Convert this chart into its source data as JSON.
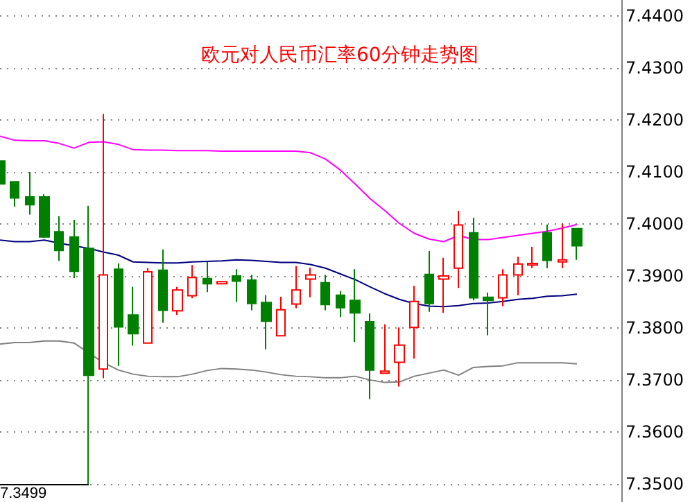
{
  "chart_data": {
    "type": "candlestick",
    "title": "欧元对人民币汇率60分钟走势图",
    "categories": [
      null,
      null,
      null,
      null,
      null,
      null,
      null,
      null,
      null,
      null,
      null,
      null,
      null,
      null,
      null,
      null,
      null,
      null,
      null,
      null,
      null,
      null,
      null,
      null,
      null,
      null,
      null,
      null,
      null,
      null,
      null,
      null,
      null,
      null,
      null,
      null,
      null,
      null,
      null,
      null
    ],
    "ohlc": [
      [
        7.4121,
        7.4121,
        7.4077,
        7.4077
      ],
      [
        7.4081,
        7.4081,
        7.4033,
        7.405
      ],
      [
        7.4052,
        7.41,
        7.4018,
        7.4037
      ],
      [
        7.4052,
        7.4057,
        7.3973,
        7.3975
      ],
      [
        7.3985,
        7.4015,
        7.3929,
        7.3949
      ],
      [
        7.3975,
        7.4008,
        7.3896,
        7.3909
      ],
      [
        7.3953,
        7.4035,
        7.3499,
        7.3709
      ],
      [
        7.3721,
        7.4212,
        7.3703,
        7.3902
      ],
      [
        7.3913,
        7.3924,
        7.3727,
        7.3802
      ],
      [
        7.3825,
        7.3879,
        7.3766,
        7.3789
      ],
      [
        7.3771,
        7.3915,
        7.3771,
        7.3908
      ],
      [
        7.3911,
        7.3951,
        7.381,
        7.3834
      ],
      [
        7.3833,
        7.3879,
        7.3825,
        7.3873
      ],
      [
        7.3862,
        7.3921,
        7.3857,
        7.3897
      ],
      [
        7.3895,
        7.3927,
        7.3869,
        7.3885
      ],
      [
        7.3885,
        7.3889,
        7.3885,
        7.3889
      ],
      [
        7.39,
        7.3913,
        7.385,
        7.389
      ],
      [
        7.3892,
        7.3902,
        7.3834,
        7.3847
      ],
      [
        7.3849,
        7.3863,
        7.3759,
        7.3813
      ],
      [
        7.3785,
        7.386,
        7.3785,
        7.3835
      ],
      [
        7.3846,
        7.3919,
        7.3838,
        7.3873
      ],
      [
        7.3894,
        7.3916,
        7.3859,
        7.3902
      ],
      [
        7.3887,
        7.3902,
        7.3834,
        7.3845
      ],
      [
        7.3863,
        7.3871,
        7.3821,
        7.3839
      ],
      [
        7.3853,
        7.3913,
        7.3773,
        7.3829
      ],
      [
        7.3812,
        7.3828,
        7.3663,
        7.3719
      ],
      [
        7.3713,
        7.3807,
        7.3713,
        7.3717
      ],
      [
        7.3734,
        7.3801,
        7.3687,
        7.3767
      ],
      [
        7.3801,
        7.3881,
        7.3741,
        7.3851
      ],
      [
        7.3903,
        7.3948,
        7.3831,
        7.3847
      ],
      [
        7.3894,
        7.3935,
        7.3829,
        7.39
      ],
      [
        7.3915,
        7.4025,
        7.3877,
        7.3998
      ],
      [
        7.3983,
        7.4012,
        7.3853,
        7.3858
      ],
      [
        7.3859,
        7.3868,
        7.3786,
        7.3853
      ],
      [
        7.3858,
        7.3913,
        7.3842,
        7.3902
      ],
      [
        7.3902,
        7.3937,
        7.3863,
        7.3923
      ],
      [
        7.3921,
        7.3956,
        7.3915,
        7.3924
      ],
      [
        7.3983,
        7.3999,
        7.3915,
        7.393
      ],
      [
        7.3927,
        7.4001,
        7.3915,
        7.3931
      ],
      [
        7.3991,
        7.3991,
        7.3931,
        7.3958
      ]
    ],
    "colors": [
      "#008000",
      "#008000",
      "#008000",
      "#008000",
      "#008000",
      "#008000",
      "#008000",
      "#ff0000",
      "#008000",
      "#008000",
      "#ff0000",
      "#008000",
      "#ff0000",
      "#ff0000",
      "#008000",
      "#ff0000",
      "#008000",
      "#008000",
      "#008000",
      "#ff0000",
      "#ff0000",
      "#ff0000",
      "#008000",
      "#008000",
      "#008000",
      "#008000",
      "#ff0000",
      "#ff0000",
      "#ff0000",
      "#008000",
      "#ff0000",
      "#ff0000",
      "#008000",
      "#008000",
      "#ff0000",
      "#ff0000",
      "#ff0000",
      "#008000",
      "#ff0000",
      "#008000"
    ],
    "series": [
      {
        "type": "line",
        "color": "#ff00ff",
        "values": [
          7.4169,
          7.4161,
          7.416,
          7.416,
          7.4155,
          7.4146,
          7.4157,
          7.4158,
          7.4153,
          7.4143,
          7.4142,
          7.4142,
          7.4141,
          7.4141,
          7.4141,
          7.414,
          7.414,
          7.414,
          7.414,
          7.414,
          7.414,
          7.4137,
          7.4125,
          7.4104,
          7.4077,
          7.4049,
          7.4026,
          7.4001,
          7.3982,
          7.3971,
          7.3966,
          7.3978,
          7.397,
          7.397,
          7.3974,
          7.3978,
          7.3982,
          7.3986,
          7.3992,
          7.3999
        ]
      },
      {
        "type": "line",
        "color": "#000080",
        "values": [
          7.3969,
          7.3966,
          7.3966,
          7.3969,
          7.3963,
          7.3958,
          7.3953,
          7.3946,
          7.394,
          7.3927,
          7.3926,
          7.3925,
          7.3925,
          7.3927,
          7.3928,
          7.3929,
          7.3931,
          7.393,
          7.3928,
          7.3926,
          7.3926,
          7.3922,
          7.3915,
          7.3904,
          7.3893,
          7.3879,
          7.3866,
          7.3855,
          7.3847,
          7.3842,
          7.3841,
          7.3843,
          7.3847,
          7.3848,
          7.3851,
          7.3855,
          7.3857,
          7.3861,
          7.3862,
          7.3865
        ]
      },
      {
        "type": "line",
        "color": "#808080",
        "values": [
          7.3769,
          7.3772,
          7.3772,
          7.3775,
          7.3775,
          7.3771,
          null,
          7.3733,
          7.3719,
          7.3711,
          7.3707,
          7.3706,
          7.3706,
          7.3711,
          7.3718,
          7.3722,
          7.3721,
          7.3719,
          7.3715,
          7.371,
          7.3707,
          7.3706,
          7.3704,
          7.3704,
          7.3707,
          7.37,
          7.3695,
          7.3696,
          7.3707,
          7.3713,
          7.3719,
          7.3709,
          7.3724,
          7.3726,
          7.3727,
          7.3733,
          7.3733,
          7.3733,
          7.3733,
          7.3731
        ]
      }
    ],
    "annotations": [
      "7.3499"
    ],
    "ylim": [
      7.3465,
      7.4431
    ],
    "yticks": [
      {
        "value": 7.35,
        "label": "7.3500"
      },
      {
        "value": 7.36,
        "label": "7.3600"
      },
      {
        "value": 7.37,
        "label": "7.3700"
      },
      {
        "value": 7.38,
        "label": "7.3800"
      },
      {
        "value": 7.39,
        "label": "7.3900"
      },
      {
        "value": 7.4,
        "label": "7.4000"
      },
      {
        "value": 7.41,
        "label": "7.4100"
      },
      {
        "value": 7.42,
        "label": "7.4200"
      },
      {
        "value": 7.43,
        "label": "7.4300"
      },
      {
        "value": 7.44,
        "label": "7.4400"
      }
    ],
    "tick_labels": "y",
    "grid": "y"
  }
}
